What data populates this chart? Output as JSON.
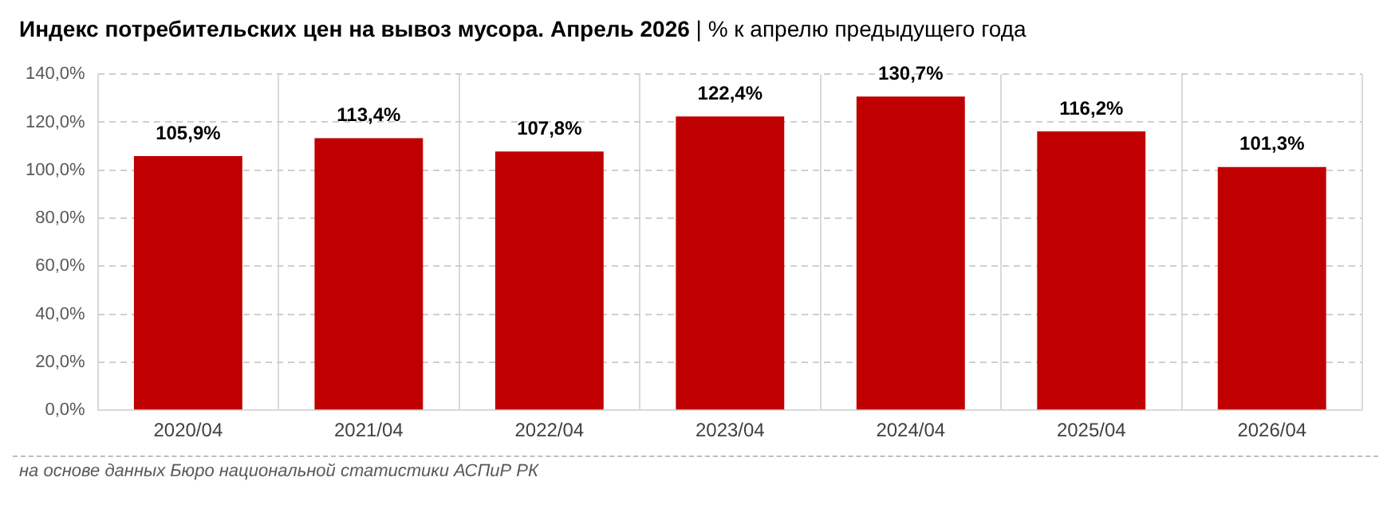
{
  "chart_data": {
    "type": "bar",
    "title": "Индекс потребительских цен на вывоз мусора. Апрель 2026",
    "subtitle": "| % к апрелю предыдущего года",
    "categories": [
      "2020/04",
      "2021/04",
      "2022/04",
      "2023/04",
      "2024/04",
      "2025/04",
      "2026/04"
    ],
    "values": [
      105.9,
      113.4,
      107.8,
      122.4,
      130.7,
      116.2,
      101.3
    ],
    "value_labels": [
      "105,9%",
      "113,4%",
      "107,8%",
      "122,4%",
      "130,7%",
      "116,2%",
      "101,3%"
    ],
    "color": "#c00000",
    "ylim": [
      0,
      140
    ],
    "yticks": [
      {
        "value": 0,
        "label": "0,0%"
      },
      {
        "value": 20,
        "label": "20,0%"
      },
      {
        "value": 40,
        "label": "40,0%"
      },
      {
        "value": 60,
        "label": "60,0%"
      },
      {
        "value": 80,
        "label": "80,0%"
      },
      {
        "value": 100,
        "label": "100,0%"
      },
      {
        "value": 120,
        "label": "120,0%"
      },
      {
        "value": 140,
        "label": "140,0%"
      }
    ],
    "grid": true,
    "annotations": [
      "на основе данных Бюро национальной статистики АСПиР РК"
    ]
  }
}
